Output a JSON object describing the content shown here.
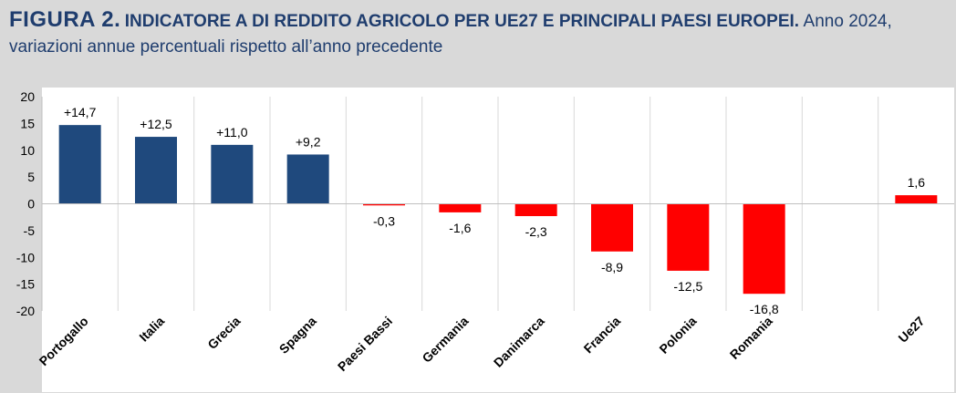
{
  "header": {
    "figure_label": "FIGURA 2.",
    "heading": "INDICATORE A DI REDDITO AGRICOLO PER UE27 E PRINCIPALI PAESI EUROPEI.",
    "subtitle_part1": "Anno 2024,",
    "subtitle_part2": "variazioni annue percentuali rispetto all’anno precedente"
  },
  "colors": {
    "positive": "#1f497d",
    "negative": "#ff0000",
    "ue27": "#ff0000",
    "grid": "#d9d9d9"
  },
  "chart_data": {
    "type": "bar",
    "title": "",
    "xlabel": "",
    "ylabel": "",
    "ylim": [
      -20,
      20
    ],
    "yticks": [
      20,
      15,
      10,
      5,
      0,
      -5,
      -10,
      -15,
      -20
    ],
    "grid": "vertical separators",
    "legend": "none",
    "categories": [
      "Portogallo",
      "Italia",
      "Grecia",
      "Spagna",
      "Paesi Bassi",
      "Germania",
      "Danimarca",
      "Francia",
      "Polonia",
      "Romania",
      "",
      "Ue27"
    ],
    "values": [
      14.7,
      12.5,
      11.0,
      9.2,
      -0.3,
      -1.6,
      -2.3,
      -8.9,
      -12.5,
      -16.8,
      null,
      1.6
    ],
    "data_labels": [
      "+14,7",
      "+12,5",
      "+11,0",
      "+9,2",
      "-0,3",
      "-1,6",
      "-2,3",
      "-8,9",
      "-12,5",
      "-16,8",
      "",
      "1,6"
    ]
  }
}
